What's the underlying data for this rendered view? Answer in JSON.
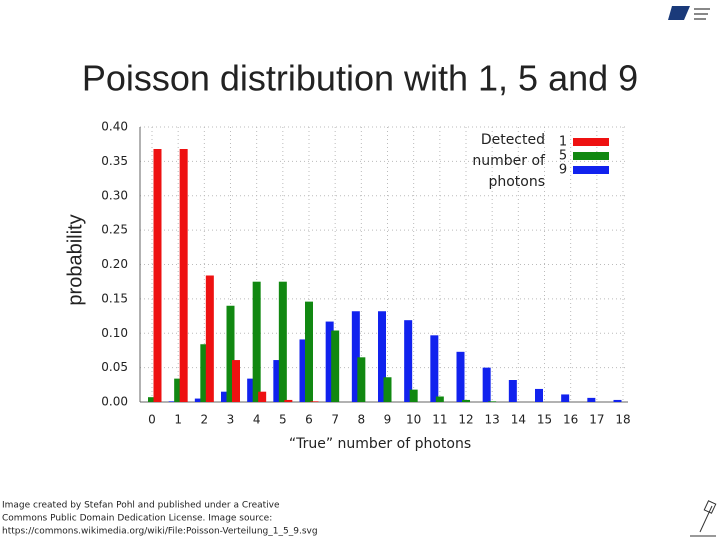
{
  "chart_data": {
    "type": "bar",
    "title": "Poisson distribution with 1, 5 and 9",
    "y_label": "probability",
    "x_label": "“True” number of photons",
    "legend_title": [
      "Detected",
      "number of",
      "photons"
    ],
    "categories": [
      "0",
      "1",
      "2",
      "3",
      "4",
      "5",
      "6",
      "7",
      "8",
      "9",
      "10",
      "11",
      "12",
      "13",
      "14",
      "15",
      "16",
      "17",
      "18"
    ],
    "series": [
      {
        "name": "1",
        "color": "#ee1111",
        "values": [
          0.368,
          0.368,
          0.184,
          0.061,
          0.015,
          0.003,
          0.001,
          0,
          0,
          0,
          0,
          0,
          0,
          0,
          0,
          0,
          0,
          0,
          0
        ]
      },
      {
        "name": "5",
        "color": "#118811",
        "values": [
          0.007,
          0.034,
          0.084,
          0.14,
          0.175,
          0.175,
          0.146,
          0.104,
          0.065,
          0.036,
          0.018,
          0.008,
          0.003,
          0.001,
          0,
          0,
          0,
          0,
          0
        ]
      },
      {
        "name": "9",
        "color": "#1122ee",
        "values": [
          0,
          0.001,
          0.005,
          0.015,
          0.034,
          0.061,
          0.091,
          0.117,
          0.132,
          0.132,
          0.119,
          0.097,
          0.073,
          0.05,
          0.032,
          0.019,
          0.011,
          0.006,
          0.003
        ]
      }
    ],
    "ylim": [
      0,
      0.4
    ],
    "yticks": [
      {
        "value": 0,
        "label": "0.00"
      },
      {
        "value": 0.05,
        "label": "0.05"
      },
      {
        "value": 0.1,
        "label": "0.10"
      },
      {
        "value": 0.15,
        "label": "0.15"
      },
      {
        "value": 0.2,
        "label": "0.20"
      },
      {
        "value": 0.25,
        "label": "0.25"
      },
      {
        "value": 0.3,
        "label": "0.30"
      },
      {
        "value": 0.35,
        "label": "0.35"
      },
      {
        "value": 0.4,
        "label": "0.40"
      }
    ],
    "grid": true,
    "legend": "upper right"
  },
  "footer": [
    "Image created by Stefan Pohl and published under a Creative",
    "Commons Public Domain Dedication License. Image source:",
    "https://commons.wikimedia.org/wiki/File:Poisson-Verteilung_1_5_9.svg"
  ]
}
